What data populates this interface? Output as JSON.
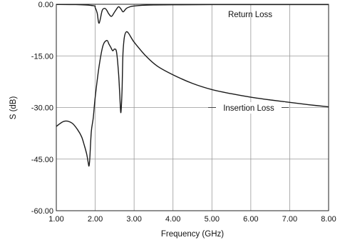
{
  "chart_data": {
    "type": "line",
    "title": "",
    "xlabel": "Frequency (GHz)",
    "ylabel": "S (dB)",
    "xlim": [
      1.0,
      8.0
    ],
    "ylim": [
      -60.0,
      0.0
    ],
    "x_ticks": [
      "1.00",
      "2.00",
      "3.00",
      "4.00",
      "5.00",
      "6.00",
      "7.00",
      "8.00"
    ],
    "y_ticks": [
      "0.00",
      "-15.00",
      "-30.00",
      "-45.00",
      "-60.00"
    ],
    "grid": true,
    "line_color": "#1a1a1a",
    "grid_color": "#999999",
    "series": [
      {
        "name": "Return Loss",
        "x": [
          1.0,
          1.5,
          1.95,
          2.0,
          2.05,
          2.1,
          2.18,
          2.25,
          2.3,
          2.35,
          2.42,
          2.5,
          2.58,
          2.62,
          2.67,
          2.72,
          2.8,
          2.9,
          3.0,
          3.2,
          3.5,
          4.0,
          5.0,
          6.0,
          7.0,
          8.0
        ],
        "y": [
          -0.05,
          -0.1,
          -0.4,
          -1.0,
          -2.5,
          -5.5,
          -1.8,
          -1.2,
          -1.8,
          -2.8,
          -3.5,
          -2.2,
          -0.9,
          -0.8,
          -1.5,
          -2.2,
          -1.2,
          -0.7,
          -0.5,
          -0.3,
          -0.2,
          -0.15,
          -0.1,
          -0.1,
          -0.1,
          -0.1
        ]
      },
      {
        "name": "Insertion Loss",
        "x": [
          1.0,
          1.2,
          1.4,
          1.55,
          1.65,
          1.72,
          1.78,
          1.82,
          1.84,
          1.86,
          1.9,
          1.95,
          2.0,
          2.1,
          2.2,
          2.3,
          2.35,
          2.4,
          2.45,
          2.5,
          2.55,
          2.6,
          2.63,
          2.66,
          2.69,
          2.72,
          2.8,
          3.0,
          3.3,
          3.6,
          4.0,
          4.5,
          5.0,
          5.5,
          6.0,
          6.5,
          7.0,
          7.5,
          8.0
        ],
        "y": [
          -35.5,
          -34.0,
          -34.5,
          -36.5,
          -38.5,
          -41.0,
          -43.5,
          -46.0,
          -47.0,
          -45.0,
          -37.0,
          -33.0,
          -27.0,
          -18.0,
          -12.0,
          -10.5,
          -11.5,
          -12.5,
          -13.5,
          -13.0,
          -14.0,
          -20.0,
          -26.0,
          -31.5,
          -25.0,
          -13.0,
          -8.0,
          -11.0,
          -15.0,
          -18.0,
          -20.5,
          -23.0,
          -24.8,
          -26.0,
          -27.0,
          -27.8,
          -28.5,
          -29.2,
          -29.8
        ]
      }
    ],
    "annotations": [
      {
        "text": "Return Loss",
        "series": "Return Loss"
      },
      {
        "text": "Insertion Loss",
        "series": "Insertion Loss"
      }
    ]
  }
}
